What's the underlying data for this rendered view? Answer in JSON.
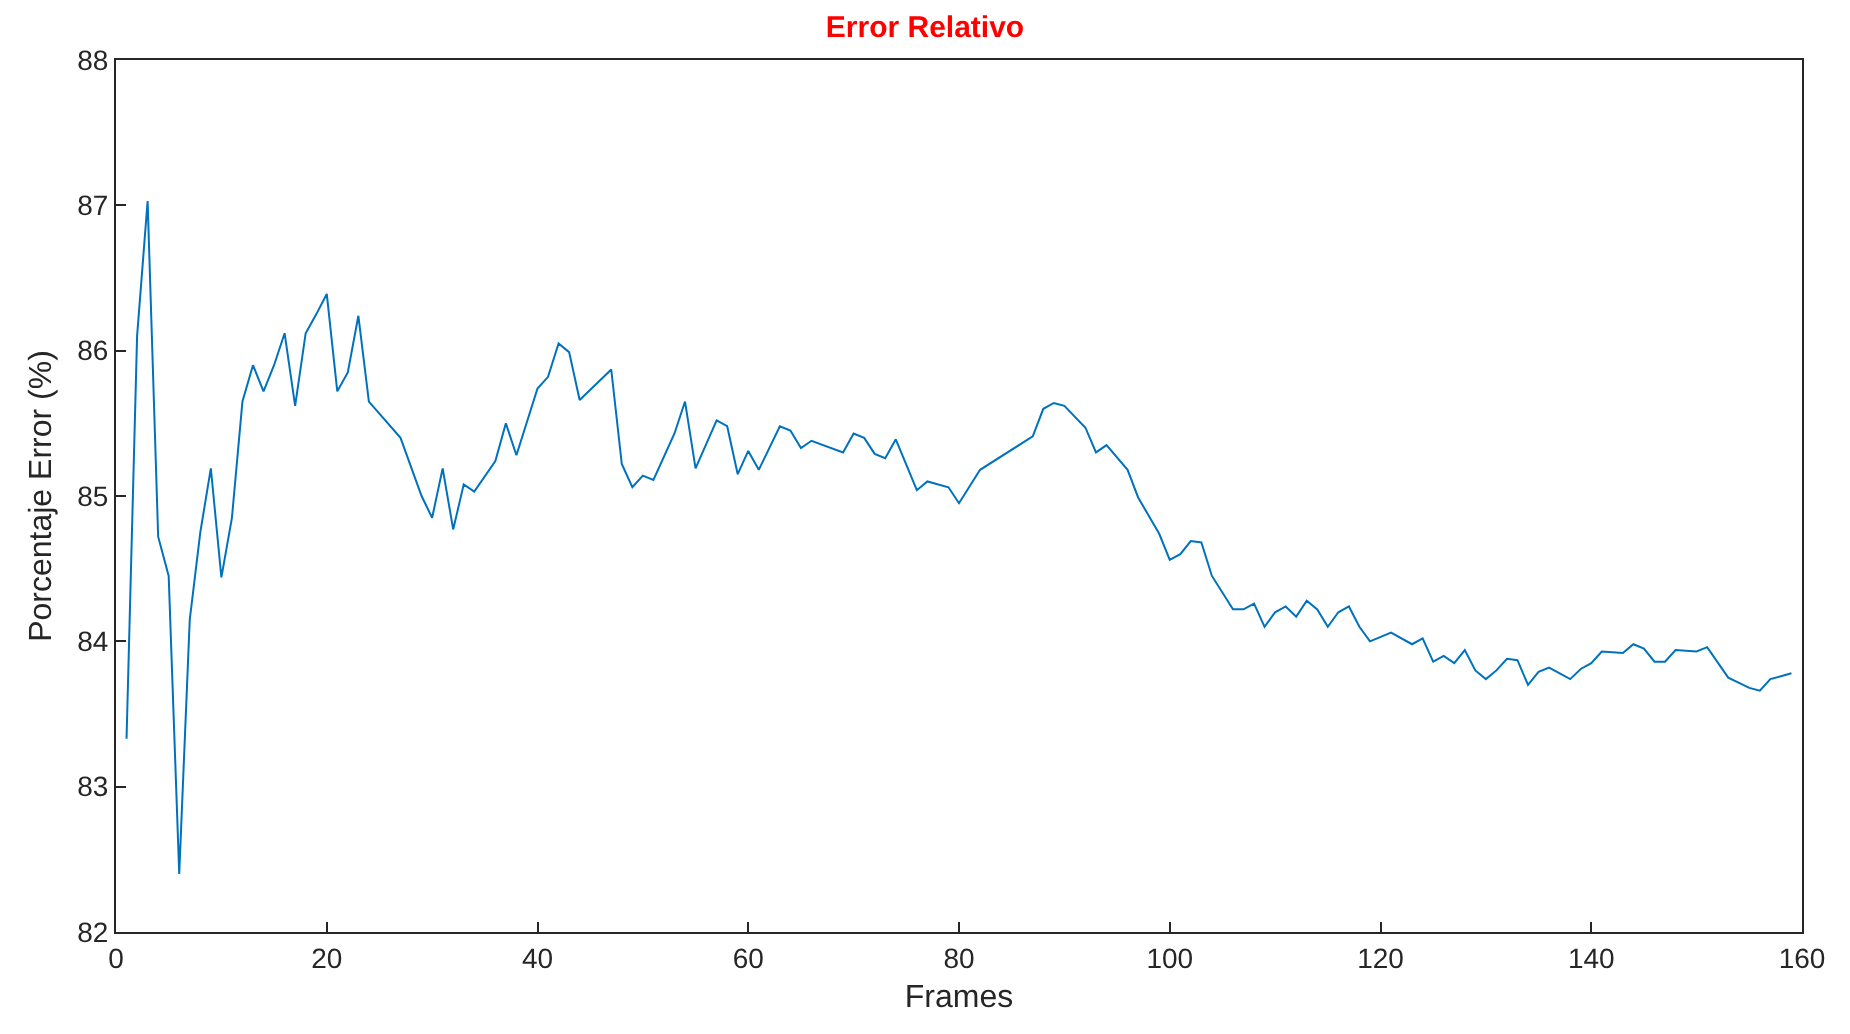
{
  "chart_data": {
    "type": "line",
    "title": "Error Relativo",
    "xlabel": "Frames",
    "ylabel": "Porcentaje Error (%)",
    "xlim": [
      0,
      160
    ],
    "xticks": [
      0,
      20,
      40,
      60,
      80,
      100,
      120,
      140,
      160
    ],
    "ylim": [
      82,
      88
    ],
    "yticks": [
      82,
      83,
      84,
      85,
      86,
      87,
      88
    ],
    "marker": "none",
    "line_style": "solid",
    "series": [
      {
        "color": "#0072bd",
        "x": [
          1,
          2,
          3,
          4,
          5,
          6,
          7,
          8,
          9,
          10,
          11,
          12,
          13,
          14,
          15,
          16,
          17,
          18,
          19,
          20,
          21,
          22,
          23,
          24,
          27,
          29,
          30,
          31,
          32,
          33,
          34,
          36,
          37,
          38,
          40,
          41,
          42,
          43,
          44,
          47,
          48,
          49,
          50,
          51,
          53,
          54,
          55,
          57,
          58,
          59,
          60,
          61,
          63,
          64,
          65,
          66,
          69,
          70,
          71,
          72,
          73,
          74,
          76,
          77,
          79,
          80,
          82,
          87,
          88,
          89,
          90,
          92,
          93,
          94,
          96,
          97,
          99,
          100,
          101,
          102,
          103,
          104,
          106,
          107,
          108,
          109,
          110,
          111,
          112,
          113,
          114,
          115,
          116,
          117,
          118,
          119,
          121,
          123,
          124,
          125,
          126,
          127,
          128,
          129,
          130,
          131,
          132,
          133,
          134,
          135,
          136,
          138,
          139,
          140,
          141,
          143,
          144,
          145,
          146,
          147,
          148,
          150,
          151,
          153,
          155,
          156,
          157,
          158,
          159
        ],
        "values": [
          83.33,
          86.1,
          87.03,
          84.72,
          84.45,
          82.4,
          84.15,
          84.75,
          85.19,
          84.44,
          84.85,
          85.65,
          85.9,
          85.72,
          85.9,
          86.12,
          85.62,
          86.12,
          86.25,
          86.39,
          85.72,
          85.85,
          86.24,
          85.65,
          85.4,
          85.0,
          84.85,
          85.19,
          84.77,
          85.08,
          85.03,
          85.24,
          85.5,
          85.28,
          85.74,
          85.82,
          86.05,
          85.99,
          85.66,
          85.87,
          85.22,
          85.06,
          85.14,
          85.11,
          85.43,
          85.65,
          85.19,
          85.52,
          85.48,
          85.15,
          85.31,
          85.18,
          85.48,
          85.45,
          85.33,
          85.38,
          85.3,
          85.43,
          85.4,
          85.29,
          85.26,
          85.39,
          85.04,
          85.1,
          85.06,
          84.95,
          85.18,
          85.41,
          85.6,
          85.64,
          85.62,
          85.47,
          85.3,
          85.35,
          85.18,
          84.99,
          84.74,
          84.56,
          84.6,
          84.69,
          84.68,
          84.45,
          84.22,
          84.22,
          84.26,
          84.1,
          84.2,
          84.24,
          84.17,
          84.28,
          84.22,
          84.1,
          84.2,
          84.24,
          84.1,
          84.0,
          84.06,
          83.98,
          84.02,
          83.86,
          83.9,
          83.85,
          83.94,
          83.8,
          83.74,
          83.8,
          83.88,
          83.87,
          83.7,
          83.79,
          83.82,
          83.74,
          83.81,
          83.85,
          83.93,
          83.92,
          83.98,
          83.95,
          83.86,
          83.86,
          83.94,
          83.93,
          83.96,
          83.75,
          83.68,
          83.66,
          83.74,
          83.76,
          83.78
        ]
      }
    ]
  }
}
